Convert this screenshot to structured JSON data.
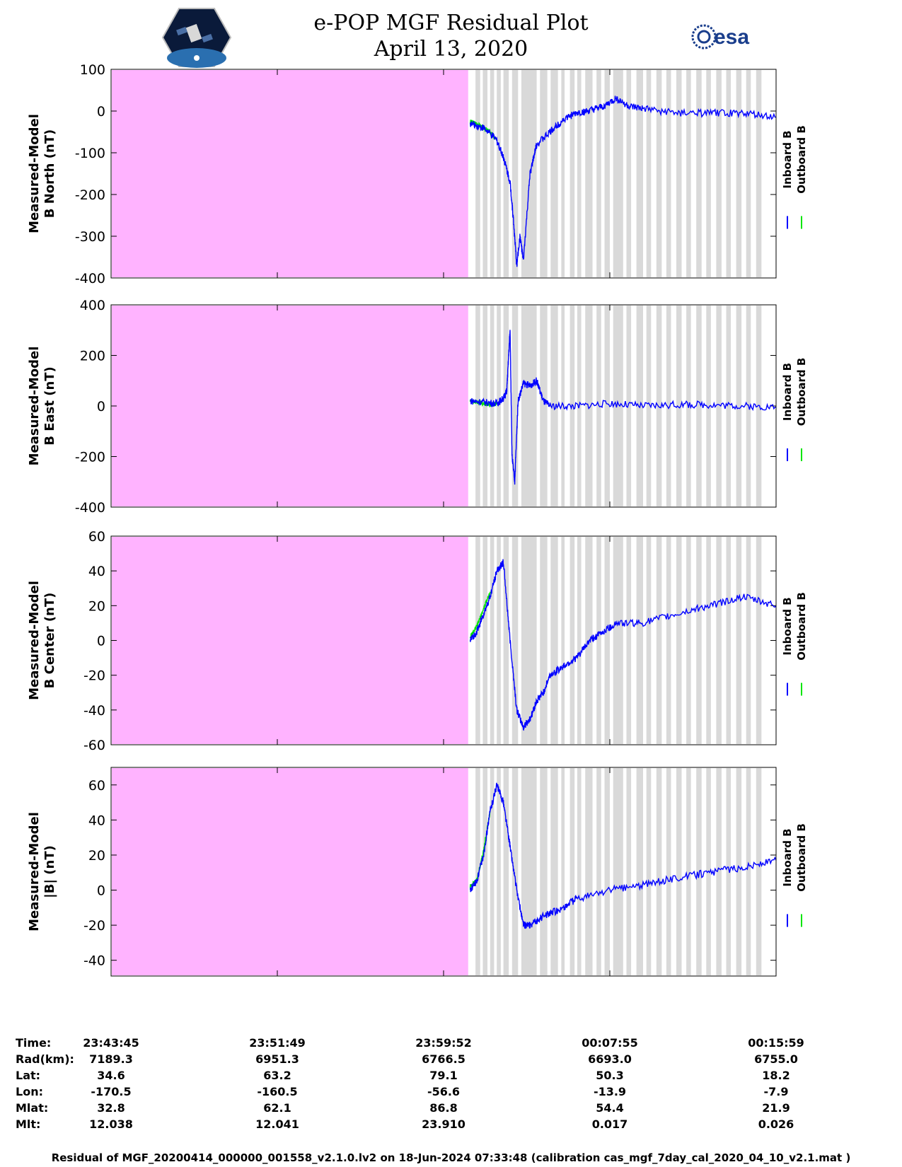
{
  "header": {
    "title_line1": "e-POP MGF Residual Plot",
    "title_line2": "April 13, 2020",
    "left_logo": "cassiope-mission-logo",
    "right_logo": "esa-logo",
    "esa_text": "esa"
  },
  "colors": {
    "data_gap_fill": "#ffb3ff",
    "gap_bars": "#d9d9d9",
    "inboard": "#0000ff",
    "outboard": "#00e600"
  },
  "chart_data": [
    {
      "type": "line",
      "ylabel_line1": "Measured-Model",
      "ylabel_line2": "B North (nT)",
      "ylim": [
        -400,
        100
      ],
      "yticks": [
        "100",
        "0",
        "-100",
        "-200",
        "-300",
        "-400"
      ],
      "legend": [
        "Inboard B",
        "Outboard B"
      ],
      "legend_placement": "right",
      "series": [
        {
          "name": "Inboard B",
          "x": [
            0.54,
            0.56,
            0.58,
            0.59,
            0.6,
            0.605,
            0.61,
            0.615,
            0.62,
            0.63,
            0.64,
            0.66,
            0.68,
            0.7,
            0.72,
            0.74,
            0.76,
            0.78,
            0.8,
            0.85,
            0.9,
            0.95,
            1.0
          ],
          "y": [
            -30,
            -40,
            -70,
            -110,
            -170,
            -260,
            -370,
            -300,
            -360,
            -150,
            -80,
            -50,
            -20,
            -5,
            0,
            10,
            30,
            10,
            5,
            -5,
            -5,
            -5,
            -15
          ]
        },
        {
          "name": "Outboard B",
          "x": [
            0.54,
            0.55,
            0.56,
            0.57,
            0.58
          ],
          "y": [
            -25,
            -30,
            -40,
            -50,
            -70
          ]
        }
      ]
    },
    {
      "type": "line",
      "ylabel_line1": "Measured-Model",
      "ylabel_line2": "B East (nT)",
      "ylim": [
        -400,
        400
      ],
      "yticks": [
        "400",
        "200",
        "0",
        "-200",
        "-400"
      ],
      "legend": [
        "Inboard B",
        "Outboard B"
      ],
      "legend_placement": "right",
      "series": [
        {
          "name": "Inboard B",
          "x": [
            0.54,
            0.56,
            0.58,
            0.59,
            0.595,
            0.6,
            0.603,
            0.607,
            0.612,
            0.62,
            0.63,
            0.64,
            0.65,
            0.66,
            0.7,
            0.75,
            0.8,
            0.85,
            0.9,
            0.95,
            1.0
          ],
          "y": [
            20,
            15,
            10,
            30,
            60,
            300,
            -200,
            -300,
            20,
            90,
            80,
            100,
            20,
            0,
            0,
            10,
            0,
            5,
            5,
            0,
            -5
          ]
        },
        {
          "name": "Outboard B",
          "x": [
            0.54,
            0.55,
            0.56,
            0.57,
            0.58
          ],
          "y": [
            20,
            15,
            10,
            5,
            10
          ]
        }
      ]
    },
    {
      "type": "line",
      "ylabel_line1": "Measured-Model",
      "ylabel_line2": "B Center (nT)",
      "ylim": [
        -60,
        60
      ],
      "yticks": [
        "60",
        "40",
        "20",
        "0",
        "-20",
        "-40",
        "-60"
      ],
      "legend": [
        "Inboard B",
        "Outboard B"
      ],
      "legend_placement": "right",
      "series": [
        {
          "name": "Inboard B",
          "x": [
            0.54,
            0.55,
            0.56,
            0.57,
            0.58,
            0.59,
            0.6,
            0.61,
            0.62,
            0.63,
            0.64,
            0.65,
            0.66,
            0.68,
            0.7,
            0.72,
            0.74,
            0.76,
            0.8,
            0.85,
            0.9,
            0.95,
            1.0
          ],
          "y": [
            0,
            5,
            15,
            25,
            40,
            45,
            0,
            -40,
            -50,
            -45,
            -35,
            -30,
            -20,
            -15,
            -10,
            0,
            5,
            10,
            10,
            15,
            20,
            25,
            20
          ]
        },
        {
          "name": "Outboard B",
          "x": [
            0.54,
            0.55,
            0.56,
            0.57
          ],
          "y": [
            2,
            8,
            18,
            28
          ]
        }
      ]
    },
    {
      "type": "line",
      "ylabel_line1": "Measured-Model",
      "ylabel_line2": "|B| (nT)",
      "ylim": [
        -49,
        70
      ],
      "yticks": [
        "60",
        "40",
        "20",
        "0",
        "-20",
        "-40"
      ],
      "legend": [
        "Inboard B",
        "Outboard B"
      ],
      "legend_placement": "right",
      "series": [
        {
          "name": "Inboard B",
          "x": [
            0.54,
            0.55,
            0.56,
            0.57,
            0.58,
            0.59,
            0.6,
            0.61,
            0.62,
            0.63,
            0.65,
            0.68,
            0.7,
            0.75,
            0.8,
            0.85,
            0.9,
            0.95,
            1.0
          ],
          "y": [
            0,
            5,
            20,
            45,
            60,
            50,
            25,
            0,
            -20,
            -20,
            -15,
            -10,
            -5,
            0,
            3,
            7,
            10,
            13,
            17
          ]
        },
        {
          "name": "Outboard B",
          "x": [
            0.54,
            0.55,
            0.56,
            0.57
          ],
          "y": [
            2,
            6,
            22,
            45
          ]
        }
      ]
    }
  ],
  "footer": {
    "rows": [
      {
        "label": "Time:",
        "values": [
          "23:43:45",
          "23:51:49",
          "23:59:52",
          "00:07:55",
          "00:15:59"
        ]
      },
      {
        "label": "Rad(km):",
        "values": [
          "7189.3",
          "6951.3",
          "6766.5",
          "6693.0",
          "6755.0"
        ]
      },
      {
        "label": "Lat:",
        "values": [
          "34.6",
          "63.2",
          "79.1",
          "50.3",
          "18.2"
        ]
      },
      {
        "label": "Lon:",
        "values": [
          "-170.5",
          "-160.5",
          "-56.6",
          "-13.9",
          "-7.9"
        ]
      },
      {
        "label": "Mlat:",
        "values": [
          "32.8",
          "62.1",
          "86.8",
          "54.4",
          "21.9"
        ]
      },
      {
        "label": "Mlt:",
        "values": [
          "12.038",
          "12.041",
          "23.910",
          "0.017",
          "0.026"
        ]
      }
    ],
    "note": "Residual of MGF_20200414_000000_001558_v2.1.0.lv2 on 18-Jun-2024 07:33:48 (calibration cas_mgf_7day_cal_2020_04_10_v2.1.mat )"
  }
}
